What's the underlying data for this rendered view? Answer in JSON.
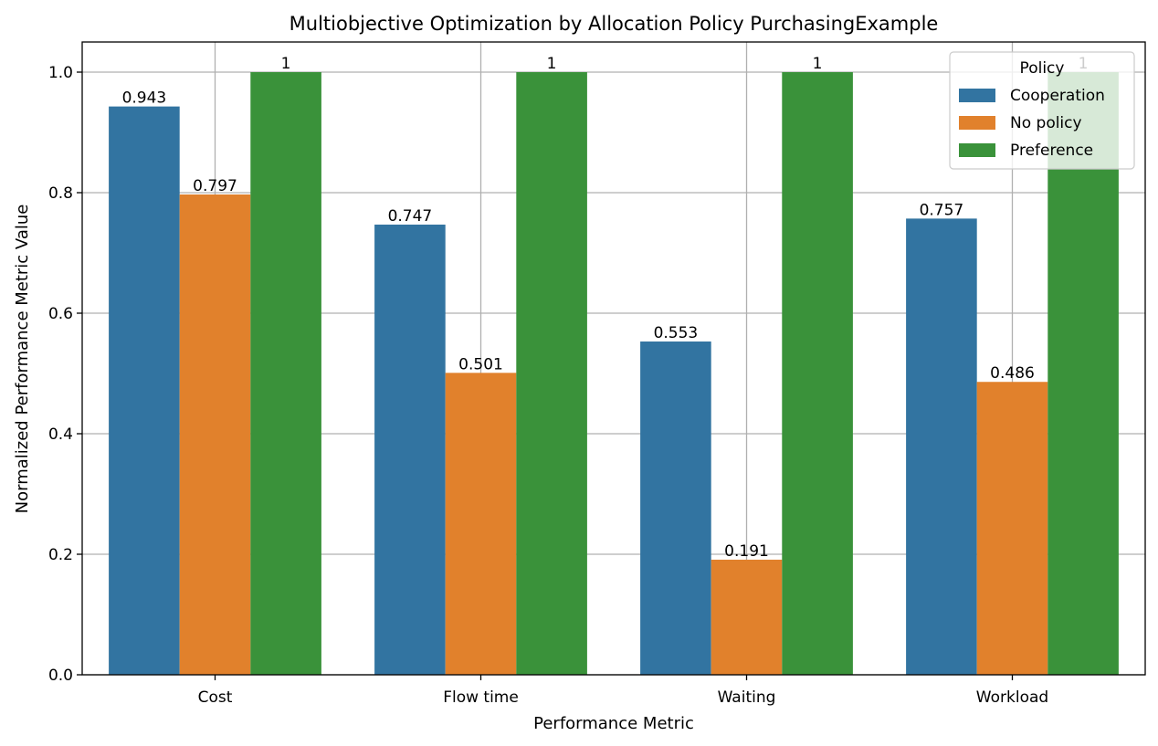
{
  "chart_data": {
    "type": "bar",
    "title": "Multiobjective Optimization by Allocation Policy PurchasingExample",
    "xlabel": "Performance Metric",
    "ylabel": "Normalized Performance Metric Value",
    "categories": [
      "Cost",
      "Flow time",
      "Waiting",
      "Workload"
    ],
    "series": [
      {
        "name": "Cooperation",
        "color": "#3274a1",
        "values": [
          0.943,
          0.747,
          0.553,
          0.757
        ],
        "labels": [
          "0.943",
          "0.747",
          "0.553",
          "0.757"
        ]
      },
      {
        "name": "No policy",
        "color": "#e1812c",
        "values": [
          0.797,
          0.501,
          0.191,
          0.486
        ],
        "labels": [
          "0.797",
          "0.501",
          "0.191",
          "0.486"
        ]
      },
      {
        "name": "Preference",
        "color": "#3a923a",
        "values": [
          1,
          1,
          1,
          1
        ],
        "labels": [
          "1",
          "1",
          "1",
          "1"
        ]
      }
    ],
    "ylim": [
      0,
      1.05
    ],
    "yticks": [
      0.0,
      0.2,
      0.4,
      0.6,
      0.8,
      1.0
    ],
    "ytick_labels": [
      "0.0",
      "0.2",
      "0.4",
      "0.6",
      "0.8",
      "1.0"
    ],
    "grid": true,
    "legend": {
      "title": "Policy",
      "position": "top-right"
    }
  }
}
